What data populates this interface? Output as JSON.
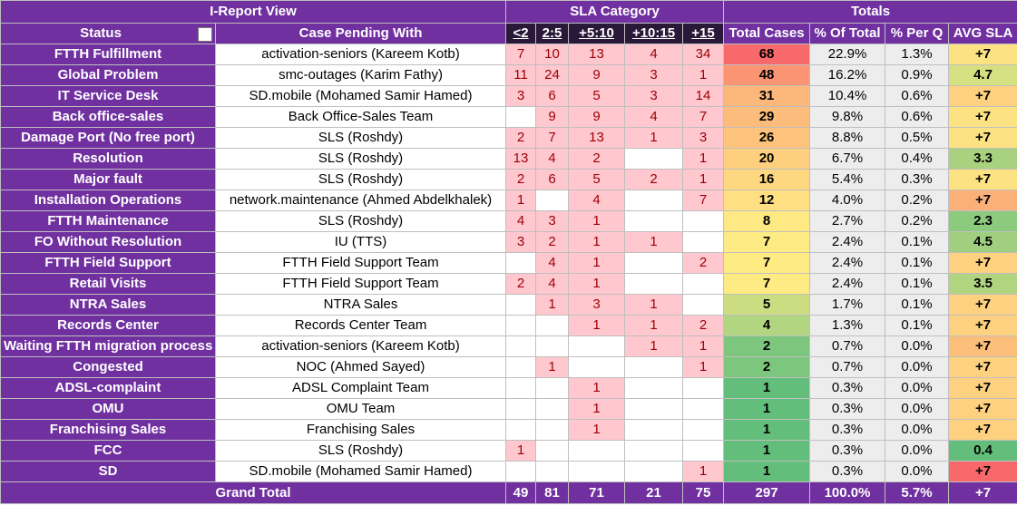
{
  "header": {
    "title": "I-Report View",
    "sla_category": "SLA Category",
    "totals": "Totals"
  },
  "columns": [
    "Status",
    "Case Pending With",
    "<2",
    "2:5",
    "+5:10",
    "+10:15",
    "+15",
    "Total Cases",
    "% Of Total",
    "% Per Q",
    "AVG SLA"
  ],
  "rows": [
    [
      "FTTH Fulfillment",
      "activation-seniors (Kareem Kotb)",
      7,
      10,
      13,
      4,
      34,
      68,
      "22.9%",
      "1.3%",
      "+7"
    ],
    [
      "Global Problem",
      "smc-outages (Karim Fathy)",
      11,
      24,
      9,
      3,
      1,
      48,
      "16.2%",
      "0.9%",
      "4.7"
    ],
    [
      "IT Service Desk",
      "SD.mobile (Mohamed Samir Hamed)",
      3,
      6,
      5,
      3,
      14,
      31,
      "10.4%",
      "0.6%",
      "+7"
    ],
    [
      "Back office-sales",
      "Back Office-Sales Team",
      null,
      9,
      9,
      4,
      7,
      29,
      "9.8%",
      "0.6%",
      "+7"
    ],
    [
      "Damage Port (No free port)",
      "SLS (Roshdy)",
      2,
      7,
      13,
      1,
      3,
      26,
      "8.8%",
      "0.5%",
      "+7"
    ],
    [
      "Resolution",
      "SLS (Roshdy)",
      13,
      4,
      2,
      null,
      1,
      20,
      "6.7%",
      "0.4%",
      "3.3"
    ],
    [
      "Major fault",
      "SLS (Roshdy)",
      2,
      6,
      5,
      2,
      1,
      16,
      "5.4%",
      "0.3%",
      "+7"
    ],
    [
      "Installation Operations",
      "network.maintenance (Ahmed Abdelkhalek)",
      1,
      null,
      4,
      null,
      7,
      12,
      "4.0%",
      "0.2%",
      "+7"
    ],
    [
      "FTTH Maintenance",
      "SLS (Roshdy)",
      4,
      3,
      1,
      null,
      null,
      8,
      "2.7%",
      "0.2%",
      "2.3"
    ],
    [
      "FO Without Resolution",
      "IU (TTS)",
      3,
      2,
      1,
      1,
      null,
      7,
      "2.4%",
      "0.1%",
      "4.5"
    ],
    [
      "FTTH Field Support",
      "FTTH Field Support Team",
      null,
      4,
      1,
      null,
      2,
      7,
      "2.4%",
      "0.1%",
      "+7"
    ],
    [
      "Retail Visits",
      "FTTH Field Support Team",
      2,
      4,
      1,
      null,
      null,
      7,
      "2.4%",
      "0.1%",
      "3.5"
    ],
    [
      "NTRA Sales",
      "NTRA Sales",
      null,
      1,
      3,
      1,
      null,
      5,
      "1.7%",
      "0.1%",
      "+7"
    ],
    [
      "Records Center",
      "Records Center Team",
      null,
      null,
      1,
      1,
      2,
      4,
      "1.3%",
      "0.1%",
      "+7"
    ],
    [
      "Waiting FTTH migration process",
      "activation-seniors (Kareem Kotb)",
      null,
      null,
      null,
      1,
      1,
      2,
      "0.7%",
      "0.0%",
      "+7"
    ],
    [
      "Congested",
      "NOC (Ahmed Sayed)",
      null,
      1,
      null,
      null,
      1,
      2,
      "0.7%",
      "0.0%",
      "+7"
    ],
    [
      "ADSL-complaint",
      "ADSL Complaint Team",
      null,
      null,
      1,
      null,
      null,
      1,
      "0.3%",
      "0.0%",
      "+7"
    ],
    [
      "OMU",
      "OMU Team",
      null,
      null,
      1,
      null,
      null,
      1,
      "0.3%",
      "0.0%",
      "+7"
    ],
    [
      "Franchising Sales",
      "Franchising Sales",
      null,
      null,
      1,
      null,
      null,
      1,
      "0.3%",
      "0.0%",
      "+7"
    ],
    [
      "FCC",
      "SLS (Roshdy)",
      1,
      null,
      null,
      null,
      null,
      1,
      "0.3%",
      "0.0%",
      "0.4"
    ],
    [
      "SD",
      "SD.mobile (Mohamed Samir Hamed)",
      null,
      null,
      null,
      null,
      1,
      1,
      "0.3%",
      "0.0%",
      "+7"
    ]
  ],
  "avg_sla_colors": [
    "#fde283",
    "#d5e082",
    "#fdd17f",
    "#fde283",
    "#fde283",
    "#a9d27f",
    "#fde283",
    "#fbb07a",
    "#8cca7e",
    "#9fcf7f",
    "#fdd17f",
    "#b0d480",
    "#fdd17f",
    "#fdd17f",
    "#fcbf7b",
    "#fdd17f",
    "#fdd17f",
    "#fdd17f",
    "#fdd17f",
    "#63be7b",
    "#f8696b"
  ],
  "grand_total": {
    "label": "Grand Total",
    "values": [
      49,
      81,
      71,
      21,
      75,
      297,
      "100.0%",
      "5.7%",
      "+7"
    ]
  }
}
